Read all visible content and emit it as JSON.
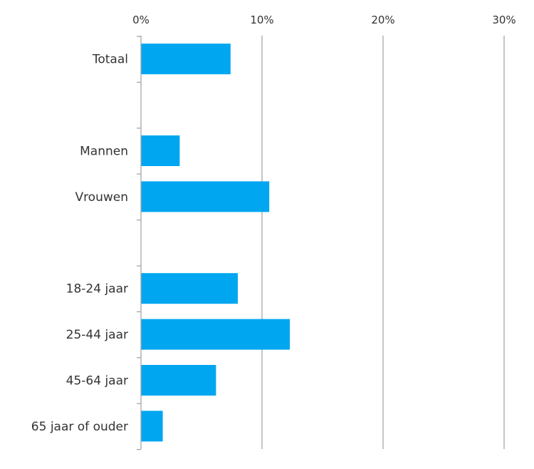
{
  "chart_data": {
    "type": "bar",
    "orientation": "horizontal",
    "title": "",
    "xlabel": "",
    "ylabel": "",
    "xlim": [
      0,
      30
    ],
    "x_ticks": [
      0,
      10,
      20,
      30
    ],
    "x_tick_labels": [
      "0%",
      "10%",
      "20%",
      "30%"
    ],
    "x_axis_position": "top",
    "grid": "vertical",
    "legend": "none",
    "bar_color": "#00a6f0",
    "grid_color": "#a6a6a6",
    "categories": [
      "Totaal",
      "",
      "Mannen",
      "Vrouwen",
      "",
      "18-24 jaar",
      "25-44 jaar",
      "45-64 jaar",
      "65 jaar of ouder"
    ],
    "values": [
      7.4,
      null,
      3.2,
      10.6,
      null,
      8.0,
      12.3,
      6.2,
      1.8
    ]
  }
}
